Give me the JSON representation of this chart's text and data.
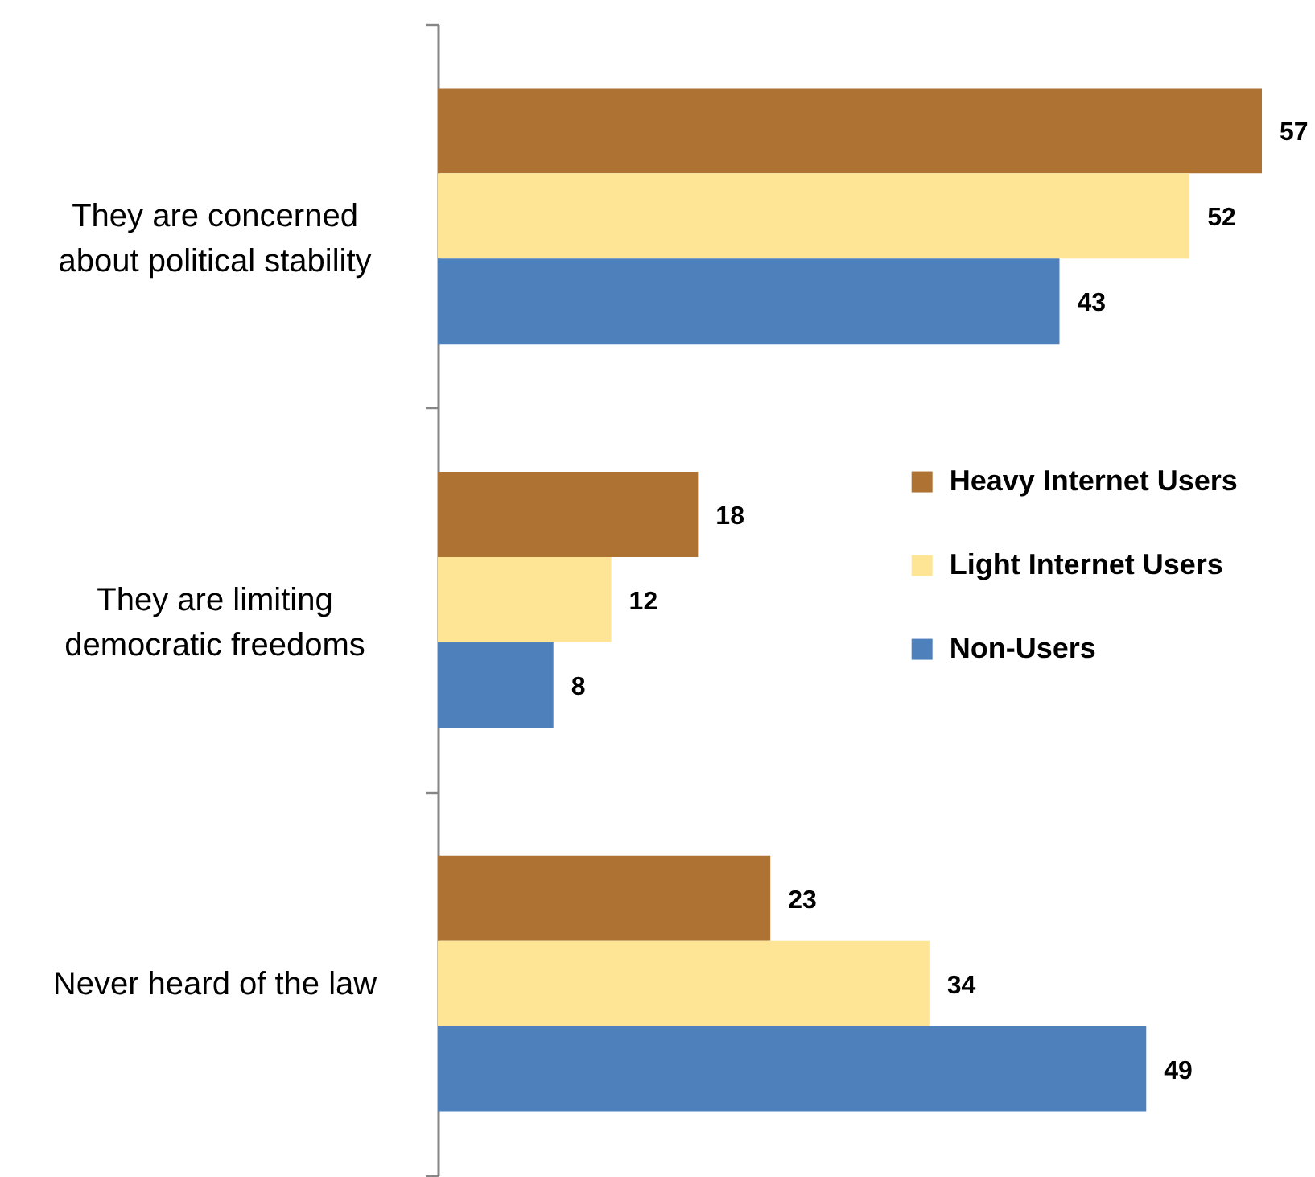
{
  "chart_data": {
    "type": "bar",
    "orientation": "horizontal",
    "categories": [
      "They are concerned about political stability",
      "They are limiting democratic freedoms",
      "Never heard of the law"
    ],
    "series": [
      {
        "name": "Heavy Internet Users",
        "color": "#ae7333",
        "values": [
          57,
          18,
          23
        ]
      },
      {
        "name": "Light Internet Users",
        "color": "#fde595",
        "values": [
          52,
          12,
          34
        ]
      },
      {
        "name": "Non-Users",
        "color": "#4e80bb",
        "values": [
          43,
          8,
          49
        ]
      }
    ],
    "data_labels": true,
    "legend": "right"
  }
}
